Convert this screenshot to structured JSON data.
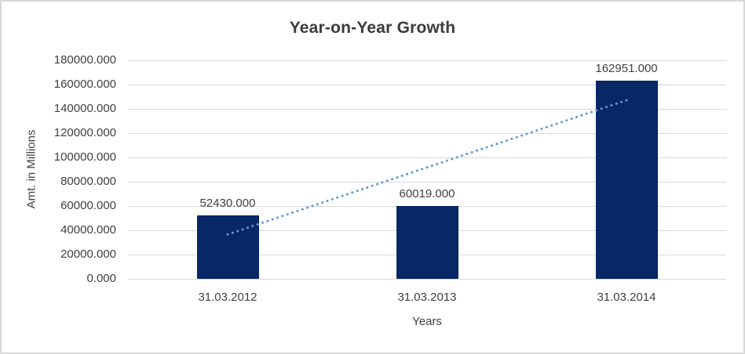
{
  "chart_data": {
    "type": "bar",
    "title": "Year-on-Year Growth",
    "xlabel": "Years",
    "ylabel": "Amt. in Millions",
    "categories": [
      "31.03.2012",
      "31.03.2013",
      "31.03.2014"
    ],
    "values": [
      52430,
      60019,
      162951
    ],
    "data_labels": [
      "52430.000",
      "60019.000",
      "162951.000"
    ],
    "ylim": [
      0,
      180000
    ],
    "ytick_step": 20000,
    "ytick_labels": [
      "0.000",
      "20000.000",
      "40000.000",
      "60000.000",
      "80000.000",
      "100000.000",
      "120000.000",
      "140000.000",
      "160000.000",
      "180000.000"
    ],
    "grid": true,
    "legend": false,
    "trendline": {
      "type": "linear",
      "style": "dotted"
    },
    "colors": {
      "bar": "#082765",
      "trendline": "#5b9bd5",
      "gridline": "#d9d9d9",
      "text": "#404040",
      "title": "#3b3b3b",
      "background": "#ffffff",
      "border": "#d8d8d8"
    }
  }
}
